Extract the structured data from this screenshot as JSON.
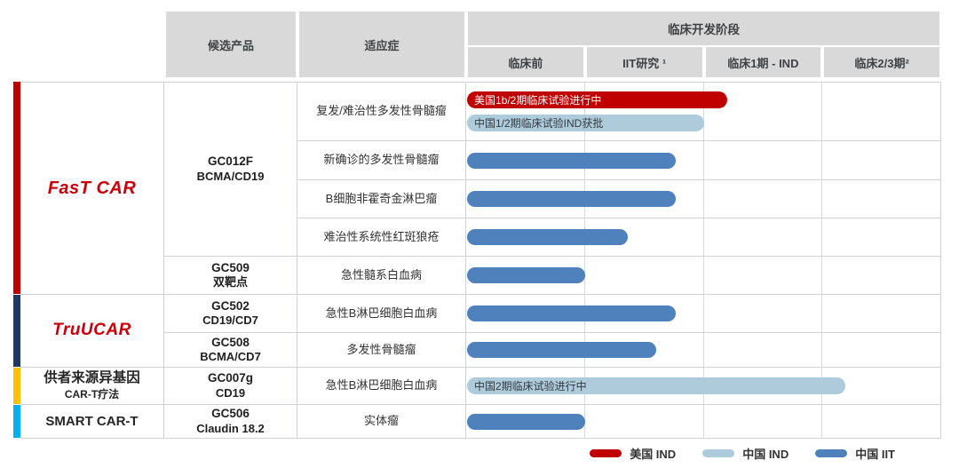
{
  "header": {
    "product": "候选产品",
    "indication": "适应症",
    "stage": "临床开发阶段",
    "stages": [
      "临床前",
      "IIT研究 ¹",
      "临床1期 - IND",
      "临床2/3期²"
    ]
  },
  "platforms": [
    {
      "line1": "FasT CAR"
    },
    {
      "line1": "TruUCAR"
    },
    {
      "line1": "供者来源异基因",
      "line2": "CAR-T疗法"
    },
    {
      "line1": "SMART CAR-T"
    }
  ],
  "colors": {
    "us_ind": "#c00000",
    "cn_ind": "#aecbdb",
    "cn_iit": "#4f81bd",
    "strip_fast": "#c00000",
    "strip_truucar": "#1f3864",
    "strip_donor": "#ffc000",
    "strip_smart": "#00b0f0",
    "header_bg": "#d9d9d9"
  },
  "legend": [
    {
      "key": "us_ind",
      "label": "美国 IND"
    },
    {
      "key": "cn_ind",
      "label": "中国 IND"
    },
    {
      "key": "cn_iit",
      "label": "中国 IIT"
    }
  ],
  "chart_data": {
    "type": "bar",
    "title": "临床开发阶段",
    "stages": [
      "临床前",
      "IIT研究",
      "临床1期 - IND",
      "临床2/3期"
    ],
    "axis_note": "bar extent_pct = percent of stage axis width reached",
    "legend_position": "bottom-right",
    "series_legend": [
      {
        "name": "美国 IND",
        "color": "#c00000"
      },
      {
        "name": "中国 IND",
        "color": "#aecbdb"
      },
      {
        "name": "中国 IIT",
        "color": "#4f81bd"
      }
    ],
    "rows": [
      {
        "platform": "FasT CAR",
        "product": "GC012F",
        "target": "BCMA/CD19",
        "indication": "复发/难治性多发性骨髓瘤",
        "bars": [
          {
            "key": "us_ind",
            "series": "美国 IND",
            "annotation": "美国1b/2期临床试验进行中",
            "stage_reached": "临床1期 - IND",
            "extent_pct": 55
          },
          {
            "key": "cn_ind",
            "series": "中国 IND",
            "annotation": "中国1/2期临床试验IND获批",
            "stage_reached": "IIT研究",
            "extent_pct": 50
          }
        ]
      },
      {
        "platform": "FasT CAR",
        "product": "GC012F",
        "target": "BCMA/CD19",
        "indication": "新确诊的多发性骨髓瘤",
        "bars": [
          {
            "key": "cn_iit",
            "series": "中国 IIT",
            "stage_reached": "IIT研究",
            "extent_pct": 44
          }
        ]
      },
      {
        "platform": "FasT CAR",
        "product": "GC012F",
        "target": "BCMA/CD19",
        "indication": "B细胞非霍奇金淋巴瘤",
        "bars": [
          {
            "key": "cn_iit",
            "series": "中国 IIT",
            "stage_reached": "IIT研究",
            "extent_pct": 44
          }
        ]
      },
      {
        "platform": "FasT CAR",
        "product": "GC012F",
        "target": "BCMA/CD19",
        "indication": "难治性系统性红斑狼疮",
        "bars": [
          {
            "key": "cn_iit",
            "series": "中国 IIT",
            "stage_reached": "IIT研究",
            "extent_pct": 34
          }
        ]
      },
      {
        "platform": "FasT CAR",
        "product": "GC509",
        "target": "双靶点",
        "indication": "急性髓系白血病",
        "bars": [
          {
            "key": "cn_iit",
            "series": "中国 IIT",
            "stage_reached": "临床前",
            "extent_pct": 25
          }
        ]
      },
      {
        "platform": "TruUCAR",
        "product": "GC502",
        "target": "CD19/CD7",
        "indication": "急性B淋巴细胞白血病",
        "bars": [
          {
            "key": "cn_iit",
            "series": "中国 IIT",
            "stage_reached": "IIT研究",
            "extent_pct": 44
          }
        ]
      },
      {
        "platform": "TruUCAR",
        "product": "GC508",
        "target": "BCMA/CD7",
        "indication": "多发性骨髓瘤",
        "bars": [
          {
            "key": "cn_iit",
            "series": "中国 IIT",
            "stage_reached": "IIT研究",
            "extent_pct": 40
          }
        ]
      },
      {
        "platform": "供者来源异基因 CAR-T疗法",
        "product": "GC007g",
        "target": "CD19",
        "indication": "急性B淋巴细胞白血病",
        "bars": [
          {
            "key": "cn_ind",
            "series": "中国 IND",
            "annotation": "中国2期临床试验进行中",
            "stage_reached": "临床2/3期",
            "extent_pct": 80
          }
        ]
      },
      {
        "platform": "SMART CAR-T",
        "product": "GC506",
        "target": "Claudin 18.2",
        "indication": "实体瘤",
        "bars": [
          {
            "key": "cn_iit",
            "series": "中国 IIT",
            "stage_reached": "临床前",
            "extent_pct": 25
          }
        ]
      }
    ]
  }
}
